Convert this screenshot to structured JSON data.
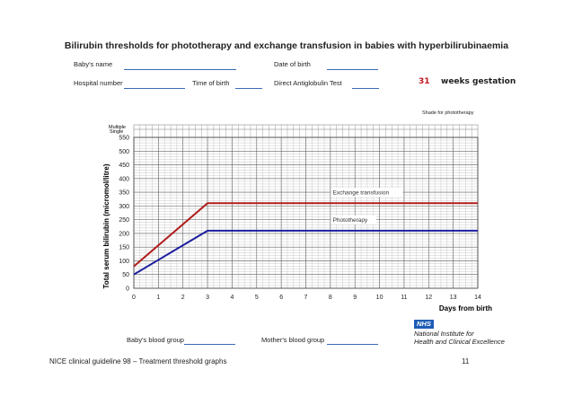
{
  "header": {
    "title": "Bilirubin thresholds for phototherapy and exchange transfusion in babies with hyperbilirubinaemia"
  },
  "form": {
    "babys_name": "Baby's name",
    "date_of_birth": "Date of birth",
    "hospital_number": "Hospital number",
    "time_of_birth": "Time of birth",
    "dat": "Direct Antiglobulin Test",
    "gestation_weeks": "31",
    "gestation_label": "weeks gestation",
    "shade_note": "Shade for phototherapy",
    "babys_blood_group": "Baby's blood group",
    "mothers_blood_group": "Mother's blood group"
  },
  "footer": {
    "guideline": "NICE clinical guideline 98 – Treatment threshold graphs",
    "page_number": "11",
    "nhs": "NHS",
    "org_line1": "National Institute for",
    "org_line2": "Health and Clinical Excellence"
  },
  "chart_data": {
    "type": "line",
    "xlabel": "Days from birth",
    "ylabel": "Total serum bilirubin (micromol/litre)",
    "xlim": [
      0,
      14
    ],
    "ylim": [
      0,
      550
    ],
    "xticks": [
      0,
      1,
      2,
      3,
      4,
      5,
      6,
      7,
      8,
      9,
      10,
      11,
      12,
      13,
      14
    ],
    "yticks": [
      0,
      50,
      100,
      150,
      200,
      250,
      300,
      350,
      400,
      450,
      500,
      550
    ],
    "grid": true,
    "top_strip_labels": [
      "Multiple",
      "Single"
    ],
    "series": [
      {
        "name": "Exchange transfusion",
        "color": "#b01c1c",
        "x": [
          0,
          3,
          14
        ],
        "y": [
          80,
          310,
          310
        ]
      },
      {
        "name": "Phototherapy",
        "color": "#1c1ca0",
        "x": [
          0,
          3,
          14
        ],
        "y": [
          50,
          210,
          210
        ]
      }
    ]
  }
}
